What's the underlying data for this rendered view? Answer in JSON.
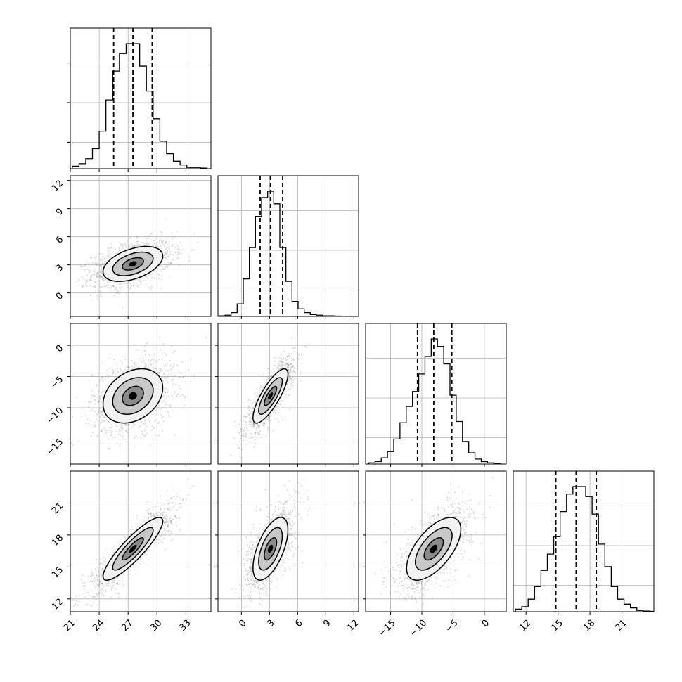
{
  "chart_data": {
    "type": "corner",
    "dims": [
      {
        "ticks": [
          21,
          24,
          27,
          30,
          33
        ],
        "tick_labels": [
          "21",
          "24",
          "27",
          "30",
          "33"
        ],
        "range": [
          21,
          35.6
        ],
        "quantiles": [
          25.5,
          27.5,
          29.5
        ],
        "hist_x0": 21.2,
        "hist_bin": 0.7,
        "hist": [
          2,
          4,
          8,
          16,
          30,
          55,
          78,
          92,
          100,
          100,
          82,
          62,
          40,
          22,
          12,
          6,
          3,
          1,
          1,
          0.5
        ],
        "mean": 27.5,
        "sd": 2.0
      },
      {
        "ticks": [
          0,
          3,
          6,
          9,
          12
        ],
        "tick_labels": [
          "0",
          "3",
          "6",
          "9",
          "12"
        ],
        "range": [
          -2.5,
          12.5
        ],
        "quantiles": [
          2.0,
          3.1,
          4.4
        ],
        "hist_x0": -2.4,
        "hist_bin": 0.65,
        "hist": [
          0.5,
          1,
          3,
          10,
          30,
          55,
          80,
          95,
          100,
          90,
          55,
          28,
          12,
          6,
          3,
          1.5,
          1,
          0.5,
          0.5,
          0.3,
          0.2,
          0.1,
          0.1
        ],
        "mean": 3.1,
        "sd": 1.2
      },
      {
        "ticks": [
          0,
          -5,
          -10,
          -15
        ],
        "tick_labels": [
          "0",
          "−5",
          "−10",
          "−15"
        ],
        "range": [
          -19,
          3.5
        ],
        "quantiles": [
          -10.7,
          -8.1,
          -5.2
        ],
        "hist_x0": -18.5,
        "hist_bin": 1.0,
        "hist": [
          1,
          2,
          5,
          10,
          20,
          33,
          46,
          58,
          72,
          86,
          100,
          94,
          80,
          55,
          34,
          18,
          9,
          4,
          2,
          1,
          0.5
        ],
        "mean": -8.1,
        "sd": 2.8
      },
      {
        "ticks": [
          12,
          15,
          18,
          21
        ],
        "tick_labels": [
          "12",
          "15",
          "18",
          "21"
        ],
        "range": [
          10.8,
          24.0
        ],
        "quantiles": [
          14.8,
          16.7,
          18.6
        ],
        "hist_x0": 11.0,
        "hist_bin": 0.6,
        "hist": [
          2,
          4,
          10,
          20,
          33,
          46,
          60,
          80,
          94,
          100,
          100,
          92,
          78,
          54,
          36,
          20,
          10,
          6,
          3,
          1,
          0.5,
          0.3
        ],
        "mean": 16.7,
        "sd": 1.9
      }
    ],
    "correlations": [
      {
        "row": 1,
        "col": 0,
        "r": 0.45
      },
      {
        "row": 2,
        "col": 0,
        "r": 0.3
      },
      {
        "row": 2,
        "col": 1,
        "r": 0.8
      },
      {
        "row": 3,
        "col": 0,
        "r": 0.88
      },
      {
        "row": 3,
        "col": 1,
        "r": 0.6
      },
      {
        "row": 3,
        "col": 2,
        "r": 0.62
      }
    ],
    "contour_levels": [
      0.5,
      1.0,
      1.5,
      2.0
    ],
    "grid": true,
    "colors": {
      "points": "#888888",
      "lines": "#000000",
      "grid": "#b0b0b0"
    }
  }
}
